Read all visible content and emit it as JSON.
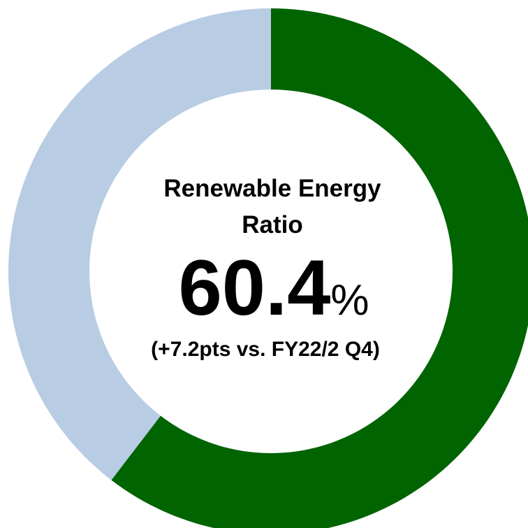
{
  "chart_data": {
    "type": "donut",
    "title": "Renewable Energy Ratio",
    "categories": [
      null,
      null
    ],
    "values": [
      60.4,
      39.6
    ],
    "colors": [
      "#006400",
      "#b8cce4"
    ],
    "unit": "%",
    "subtitle": "(+7.2pts vs. FY22/2 Q4)"
  }
}
